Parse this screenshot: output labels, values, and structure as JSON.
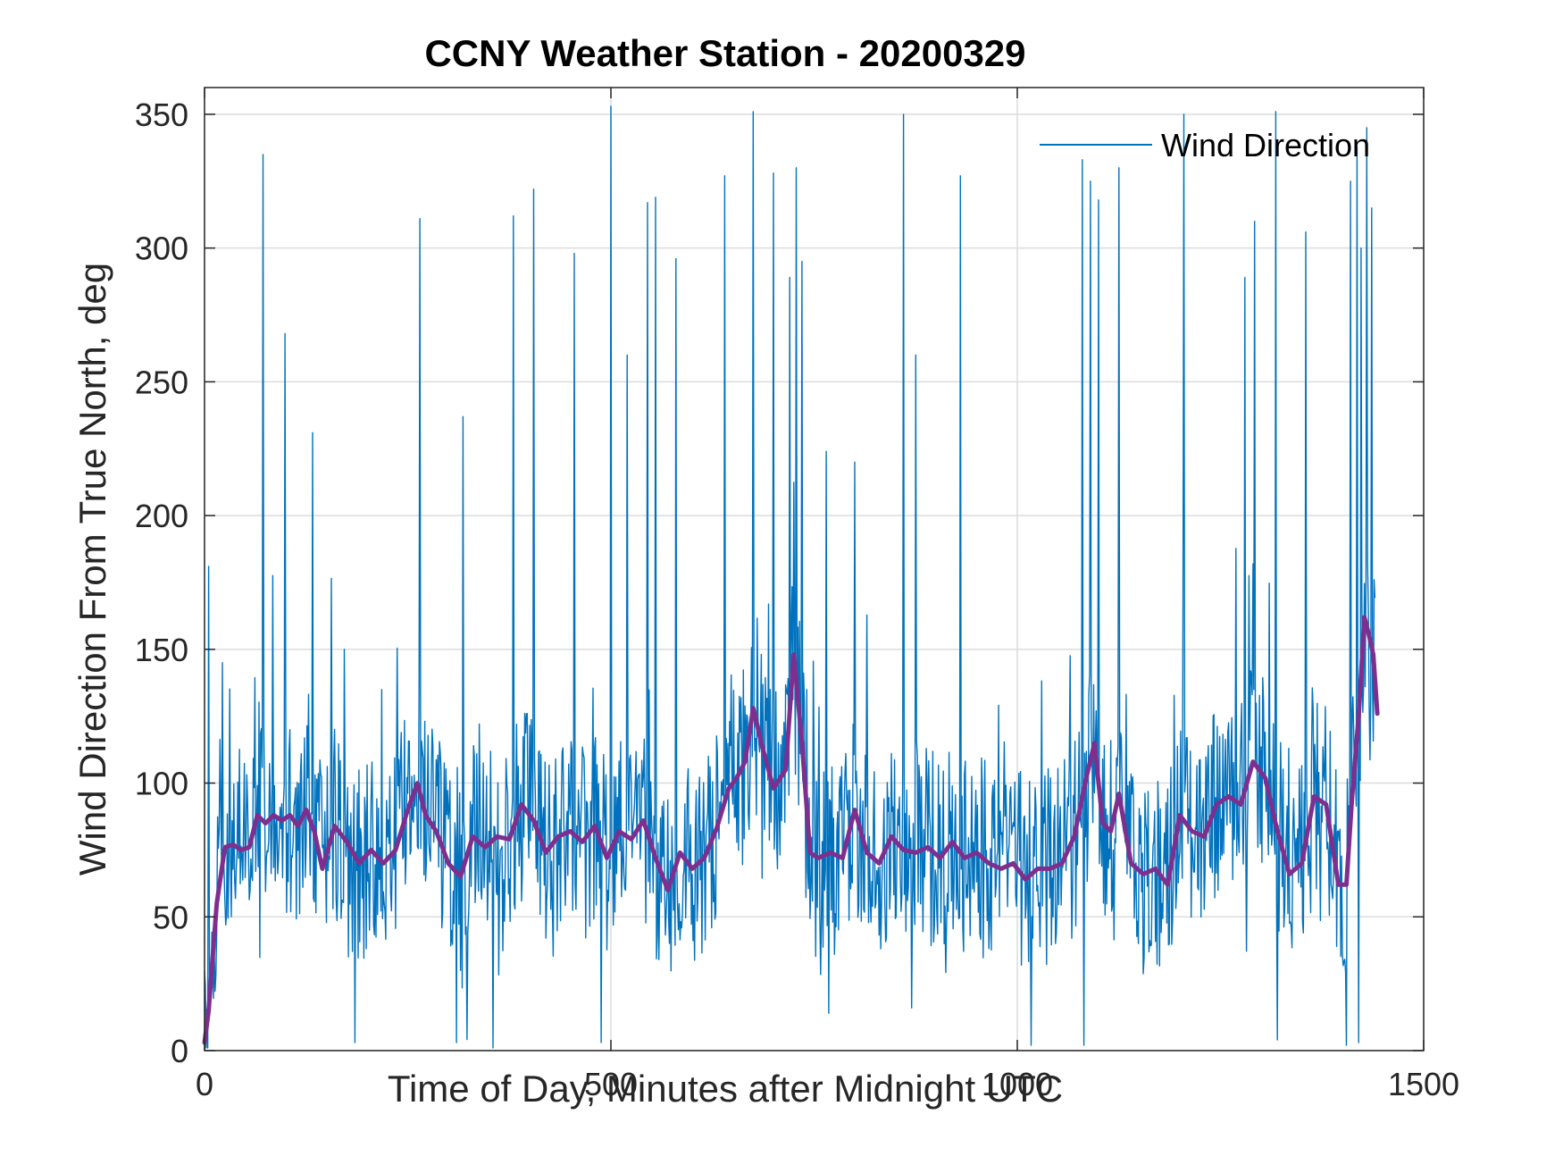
{
  "chart_data": {
    "type": "line",
    "title": "CCNY Weather Station - 20200329",
    "xlabel": "Time of Day, Minutes after Midnight UTC",
    "ylabel": "Wind Direction From True North, deg",
    "xlim": [
      0,
      1500
    ],
    "ylim": [
      0,
      360
    ],
    "xticks": [
      0,
      500,
      1000,
      1500
    ],
    "yticks": [
      0,
      50,
      100,
      150,
      200,
      250,
      300,
      350
    ],
    "grid": true,
    "legend_position": "top-right",
    "series": [
      {
        "name": "Wind Direction",
        "color": "#0072BD",
        "style": "thin-noisy-line",
        "x_start": 0,
        "x_end": 1440,
        "sample_interval_minutes": 1,
        "typical_range": [
          25,
          130
        ],
        "spikes": [
          {
            "x": 5,
            "y": 181
          },
          {
            "x": 22,
            "y": 145
          },
          {
            "x": 72,
            "y": 335
          },
          {
            "x": 99,
            "y": 268
          },
          {
            "x": 133,
            "y": 231
          },
          {
            "x": 185,
            "y": 182
          },
          {
            "x": 265,
            "y": 311
          },
          {
            "x": 318,
            "y": 237
          },
          {
            "x": 380,
            "y": 312
          },
          {
            "x": 405,
            "y": 322
          },
          {
            "x": 455,
            "y": 298
          },
          {
            "x": 500,
            "y": 353
          },
          {
            "x": 520,
            "y": 260
          },
          {
            "x": 545,
            "y": 317
          },
          {
            "x": 555,
            "y": 319
          },
          {
            "x": 580,
            "y": 296
          },
          {
            "x": 640,
            "y": 327
          },
          {
            "x": 675,
            "y": 351
          },
          {
            "x": 700,
            "y": 328
          },
          {
            "x": 720,
            "y": 289
          },
          {
            "x": 728,
            "y": 330
          },
          {
            "x": 735,
            "y": 295
          },
          {
            "x": 765,
            "y": 224
          },
          {
            "x": 800,
            "y": 220
          },
          {
            "x": 860,
            "y": 350
          },
          {
            "x": 875,
            "y": 260
          },
          {
            "x": 930,
            "y": 327
          },
          {
            "x": 1080,
            "y": 333
          },
          {
            "x": 1090,
            "y": 325
          },
          {
            "x": 1100,
            "y": 318
          },
          {
            "x": 1125,
            "y": 330
          },
          {
            "x": 1205,
            "y": 350
          },
          {
            "x": 1280,
            "y": 289
          },
          {
            "x": 1292,
            "y": 310
          },
          {
            "x": 1318,
            "y": 351
          },
          {
            "x": 1355,
            "y": 306
          },
          {
            "x": 1410,
            "y": 325
          },
          {
            "x": 1418,
            "y": 338
          },
          {
            "x": 1423,
            "y": 300
          },
          {
            "x": 1430,
            "y": 345
          },
          {
            "x": 1436,
            "y": 315
          },
          {
            "x": 1441,
            "y": 312
          }
        ],
        "drops": [
          {
            "x": 185,
            "y": 3
          },
          {
            "x": 310,
            "y": 3
          },
          {
            "x": 355,
            "y": 1
          },
          {
            "x": 488,
            "y": 3
          },
          {
            "x": 1017,
            "y": 2
          },
          {
            "x": 1082,
            "y": 2
          },
          {
            "x": 1320,
            "y": 4
          },
          {
            "x": 1405,
            "y": 2
          },
          {
            "x": 1420,
            "y": 3
          }
        ]
      },
      {
        "name": "",
        "color": "#7E2F8E",
        "style": "thick-smoothed-line",
        "x": [
          0,
          5,
          10,
          15,
          25,
          35,
          45,
          55,
          65,
          75,
          85,
          95,
          105,
          115,
          125,
          135,
          145,
          160,
          175,
          190,
          205,
          220,
          235,
          250,
          262,
          272,
          285,
          300,
          315,
          330,
          345,
          360,
          375,
          390,
          405,
          420,
          435,
          450,
          465,
          480,
          495,
          510,
          525,
          540,
          555,
          570,
          585,
          600,
          615,
          630,
          645,
          655,
          665,
          675,
          685,
          700,
          715,
          725,
          735,
          745,
          755,
          770,
          785,
          800,
          815,
          830,
          845,
          860,
          875,
          890,
          905,
          920,
          935,
          950,
          965,
          980,
          995,
          1010,
          1025,
          1040,
          1055,
          1070,
          1085,
          1095,
          1105,
          1115,
          1125,
          1140,
          1155,
          1170,
          1185,
          1200,
          1215,
          1230,
          1245,
          1260,
          1275,
          1290,
          1305,
          1320,
          1335,
          1350,
          1365,
          1380,
          1395,
          1405,
          1412,
          1420,
          1427,
          1433,
          1438,
          1443
        ],
        "y": [
          3,
          15,
          35,
          55,
          76,
          77,
          75,
          76,
          88,
          85,
          88,
          86,
          88,
          84,
          90,
          82,
          68,
          84,
          78,
          70,
          75,
          70,
          75,
          90,
          100,
          88,
          82,
          70,
          65,
          80,
          76,
          80,
          79,
          92,
          86,
          74,
          80,
          82,
          78,
          84,
          72,
          82,
          79,
          86,
          72,
          60,
          74,
          68,
          72,
          83,
          98,
          102,
          108,
          128,
          115,
          98,
          105,
          148,
          115,
          74,
          72,
          74,
          72,
          90,
          74,
          70,
          80,
          75,
          74,
          76,
          72,
          78,
          72,
          74,
          70,
          68,
          70,
          64,
          68,
          68,
          70,
          80,
          102,
          115,
          85,
          82,
          96,
          70,
          66,
          68,
          62,
          88,
          82,
          80,
          92,
          95,
          92,
          108,
          102,
          82,
          66,
          70,
          95,
          92,
          62,
          62,
          95,
          125,
          162,
          155,
          148,
          126
        ]
      }
    ]
  }
}
